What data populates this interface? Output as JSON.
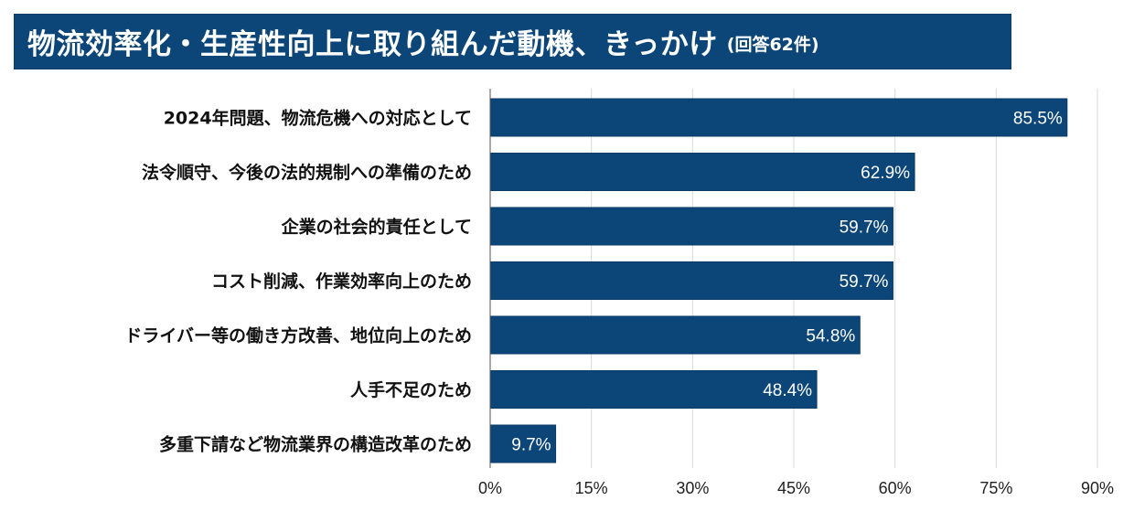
{
  "title": {
    "main": "物流効率化・生産性向上に取り組んだ動機、きっかけ",
    "sub": "(回答62件)"
  },
  "chart_data": {
    "type": "bar",
    "orientation": "horizontal",
    "categories": [
      "2024年問題、物流危機への対応として",
      "法令順守、今後の法的規制への準備のため",
      "企業の社会的責任として",
      "コスト削減、作業効率向上のため",
      "ドライバー等の働き方改善、地位向上のため",
      "人手不足のため",
      "多重下請など物流業界の構造改革のため"
    ],
    "values": [
      85.5,
      62.9,
      59.7,
      59.7,
      54.8,
      48.4,
      9.7
    ],
    "value_labels": [
      "85.5%",
      "62.9%",
      "59.7%",
      "59.7%",
      "54.8%",
      "48.4%",
      "9.7%"
    ],
    "xlim": [
      0,
      90
    ],
    "xticks": [
      0,
      15,
      30,
      45,
      60,
      75,
      90
    ],
    "xtick_labels": [
      "0%",
      "15%",
      "30%",
      "45%",
      "60%",
      "75%",
      "90%"
    ],
    "grid": true,
    "colors": {
      "bar": "#0c4679",
      "grid": "#d9d9d9",
      "axis": "#555555"
    }
  }
}
